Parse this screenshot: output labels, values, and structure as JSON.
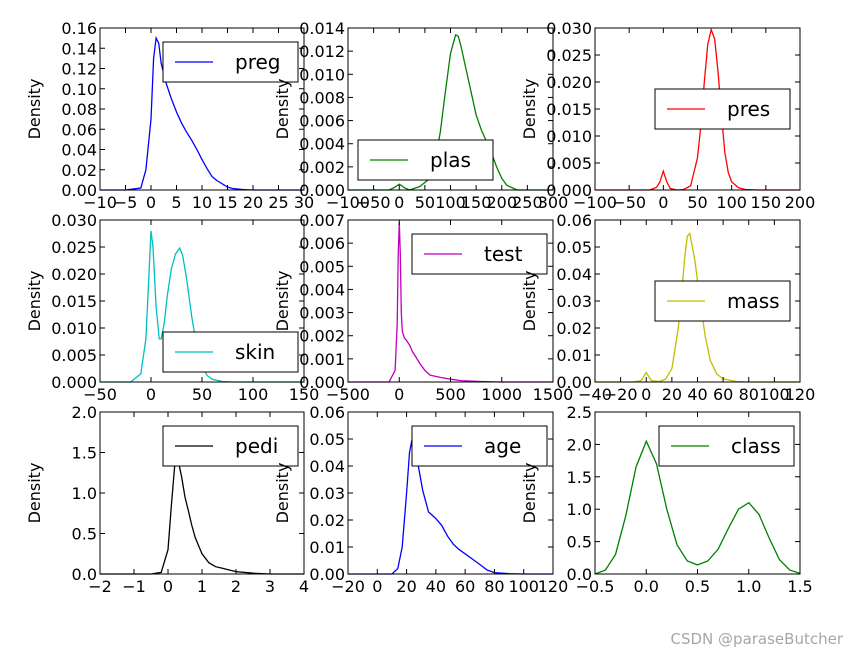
{
  "watermark": "CSDN @paraseButcher",
  "chart_data": [
    {
      "type": "line",
      "series": [
        {
          "name": "preg",
          "color": "#0000ff"
        }
      ],
      "ylabel": "Density",
      "xlim": [
        -10,
        30
      ],
      "ylim": [
        0,
        0.16
      ],
      "xticks": [
        -10,
        -5,
        0,
        5,
        10,
        15,
        20,
        25,
        30
      ],
      "xtick_labels": [
        "−10",
        "−5",
        "0",
        "5",
        "10",
        "15",
        "20",
        "25",
        "30"
      ],
      "yticks": [
        0,
        0.02,
        0.04,
        0.06,
        0.08,
        0.1,
        0.12,
        0.14,
        0.16
      ],
      "ytick_labels": [
        "0.00",
        "0.02",
        "0.04",
        "0.06",
        "0.08",
        "0.10",
        "0.12",
        "0.14",
        "0.16"
      ],
      "legend": "top-right",
      "x": [
        -10,
        -5,
        -2,
        -1,
        0,
        0.5,
        1,
        1.5,
        2,
        3,
        4,
        5,
        6,
        7,
        8,
        9,
        10,
        11,
        12,
        13,
        14,
        15,
        16,
        17,
        18,
        20,
        25,
        30
      ],
      "y": [
        0,
        0,
        0.002,
        0.02,
        0.07,
        0.13,
        0.15,
        0.145,
        0.125,
        0.105,
        0.09,
        0.077,
        0.066,
        0.057,
        0.049,
        0.04,
        0.03,
        0.021,
        0.013,
        0.009,
        0.006,
        0.003,
        0.0015,
        0.001,
        0.0005,
        0,
        0,
        0
      ]
    },
    {
      "type": "line",
      "series": [
        {
          "name": "plas",
          "color": "#008000"
        }
      ],
      "ylabel": "Density",
      "xlim": [
        -100,
        300
      ],
      "ylim": [
        0,
        0.014
      ],
      "xticks": [
        -100,
        -50,
        0,
        50,
        100,
        150,
        200,
        250,
        300
      ],
      "xtick_labels": [
        "−100",
        "−50",
        "0",
        "50",
        "100",
        "150",
        "200",
        "250",
        "300"
      ],
      "yticks": [
        0,
        0.002,
        0.004,
        0.006,
        0.008,
        0.01,
        0.012,
        0.014
      ],
      "ytick_labels": [
        "0.000",
        "0.002",
        "0.004",
        "0.006",
        "0.008",
        "0.010",
        "0.012",
        "0.014"
      ],
      "legend": "bottom-left",
      "x": [
        -100,
        -20,
        -10,
        0,
        10,
        20,
        40,
        60,
        70,
        80,
        90,
        100,
        110,
        115,
        120,
        130,
        140,
        150,
        160,
        170,
        180,
        190,
        200,
        210,
        230,
        260,
        300
      ],
      "y": [
        0,
        0,
        0.0002,
        0.0005,
        0.0002,
        0,
        0.0003,
        0.001,
        0.0025,
        0.005,
        0.0085,
        0.0118,
        0.0134,
        0.0133,
        0.0125,
        0.0105,
        0.0085,
        0.0065,
        0.0052,
        0.0042,
        0.0032,
        0.002,
        0.001,
        0.0004,
        0,
        0,
        0
      ]
    },
    {
      "type": "line",
      "series": [
        {
          "name": "pres",
          "color": "#ff0000"
        }
      ],
      "ylabel": "Density",
      "xlim": [
        -100,
        200
      ],
      "ylim": [
        0,
        0.03
      ],
      "xticks": [
        -100,
        -50,
        0,
        50,
        100,
        150,
        200
      ],
      "xtick_labels": [
        "−100",
        "−50",
        "0",
        "50",
        "100",
        "150",
        "200"
      ],
      "yticks": [
        0,
        0.005,
        0.01,
        0.015,
        0.02,
        0.025,
        0.03
      ],
      "ytick_labels": [
        "0.000",
        "0.005",
        "0.010",
        "0.015",
        "0.020",
        "0.025",
        "0.030"
      ],
      "legend": "center-right",
      "x": [
        -100,
        -40,
        -20,
        -10,
        -5,
        0,
        5,
        10,
        20,
        30,
        40,
        50,
        55,
        60,
        65,
        70,
        75,
        80,
        85,
        90,
        95,
        100,
        110,
        120,
        140,
        170,
        200
      ],
      "y": [
        0,
        0,
        0,
        0.0005,
        0.0015,
        0.0035,
        0.0015,
        0.0003,
        0,
        0.0001,
        0.0008,
        0.006,
        0.012,
        0.02,
        0.027,
        0.0297,
        0.028,
        0.022,
        0.014,
        0.007,
        0.0032,
        0.0015,
        0.0004,
        0.0001,
        0,
        0,
        0
      ]
    },
    {
      "type": "line",
      "series": [
        {
          "name": "skin",
          "color": "#00bfbf"
        }
      ],
      "ylabel": "Density",
      "xlim": [
        -50,
        150
      ],
      "ylim": [
        0,
        0.03
      ],
      "xticks": [
        -50,
        0,
        50,
        100,
        150
      ],
      "xtick_labels": [
        "−50",
        "0",
        "50",
        "100",
        "150"
      ],
      "yticks": [
        0,
        0.005,
        0.01,
        0.015,
        0.02,
        0.025,
        0.03
      ],
      "ytick_labels": [
        "0.000",
        "0.005",
        "0.010",
        "0.015",
        "0.020",
        "0.025",
        "0.030"
      ],
      "legend": "bottom-right",
      "x": [
        -50,
        -20,
        -10,
        -5,
        -2,
        0,
        2,
        5,
        8,
        10,
        13,
        16,
        20,
        24,
        28,
        31,
        35,
        40,
        45,
        50,
        55,
        60,
        70,
        80,
        100,
        150
      ],
      "y": [
        0,
        0,
        0.0015,
        0.008,
        0.02,
        0.028,
        0.025,
        0.014,
        0.008,
        0.008,
        0.011,
        0.016,
        0.021,
        0.0237,
        0.0248,
        0.0235,
        0.019,
        0.012,
        0.0065,
        0.003,
        0.0012,
        0.0005,
        0.0001,
        0,
        0,
        0
      ]
    },
    {
      "type": "line",
      "series": [
        {
          "name": "test",
          "color": "#bf00bf"
        }
      ],
      "ylabel": "Density",
      "xlim": [
        -500,
        1500
      ],
      "ylim": [
        0,
        0.007
      ],
      "xticks": [
        -500,
        0,
        500,
        1000,
        1500
      ],
      "xtick_labels": [
        "−500",
        "0",
        "500",
        "1000",
        "1500"
      ],
      "yticks": [
        0,
        0.001,
        0.002,
        0.003,
        0.004,
        0.005,
        0.006,
        0.007
      ],
      "ytick_labels": [
        "0.000",
        "0.001",
        "0.002",
        "0.003",
        "0.004",
        "0.005",
        "0.006",
        "0.007"
      ],
      "legend": "top-right",
      "x": [
        -500,
        -100,
        -40,
        -20,
        -10,
        0,
        10,
        20,
        30,
        50,
        70,
        100,
        130,
        160,
        200,
        250,
        300,
        400,
        500,
        600,
        800,
        1000,
        1500
      ],
      "y": [
        0,
        0,
        0.0005,
        0.0025,
        0.0055,
        0.0069,
        0.0055,
        0.003,
        0.0022,
        0.0019,
        0.0018,
        0.0016,
        0.0013,
        0.0011,
        0.0008,
        0.0005,
        0.0003,
        0.0002,
        0.00012,
        6e-05,
        2e-05,
        0,
        0
      ]
    },
    {
      "type": "line",
      "series": [
        {
          "name": "mass",
          "color": "#bfbf00"
        }
      ],
      "ylabel": "Density",
      "xlim": [
        -40,
        120
      ],
      "ylim": [
        0,
        0.06
      ],
      "xticks": [
        -40,
        -20,
        0,
        20,
        40,
        60,
        80,
        100,
        120
      ],
      "xtick_labels": [
        "−40",
        "−20",
        "0",
        "20",
        "40",
        "60",
        "80",
        "100",
        "120"
      ],
      "yticks": [
        0,
        0.01,
        0.02,
        0.03,
        0.04,
        0.05,
        0.06
      ],
      "ytick_labels": [
        "0.00",
        "0.01",
        "0.02",
        "0.03",
        "0.04",
        "0.05",
        "0.06"
      ],
      "legend": "center-right",
      "x": [
        -40,
        -10,
        -4,
        -2,
        0,
        2,
        4,
        10,
        15,
        20,
        25,
        28,
        30,
        32,
        34,
        38,
        42,
        46,
        50,
        55,
        60,
        70,
        80,
        120
      ],
      "y": [
        0,
        0,
        0.0005,
        0.002,
        0.0035,
        0.002,
        0.0005,
        0.0002,
        0.001,
        0.005,
        0.02,
        0.035,
        0.046,
        0.054,
        0.055,
        0.045,
        0.03,
        0.017,
        0.008,
        0.003,
        0.0012,
        0.0002,
        0,
        0
      ]
    },
    {
      "type": "line",
      "series": [
        {
          "name": "pedi",
          "color": "#000000"
        }
      ],
      "ylabel": "Density",
      "xlim": [
        -2,
        4
      ],
      "ylim": [
        0,
        2.0
      ],
      "xticks": [
        -2,
        -1,
        0,
        1,
        2,
        3,
        4
      ],
      "xtick_labels": [
        "−2",
        "−1",
        "0",
        "1",
        "2",
        "3",
        "4"
      ],
      "yticks": [
        0,
        0.5,
        1.0,
        1.5,
        2.0
      ],
      "ytick_labels": [
        "0.0",
        "0.5",
        "1.0",
        "1.5",
        "2.0"
      ],
      "legend": "top-right",
      "x": [
        -2,
        -0.5,
        -0.2,
        0,
        0.1,
        0.2,
        0.25,
        0.3,
        0.4,
        0.5,
        0.6,
        0.7,
        0.8,
        1.0,
        1.2,
        1.4,
        1.6,
        1.8,
        2.0,
        2.5,
        3,
        4
      ],
      "y": [
        0,
        0,
        0.02,
        0.3,
        0.85,
        1.35,
        1.45,
        1.4,
        1.2,
        0.95,
        0.78,
        0.6,
        0.45,
        0.25,
        0.14,
        0.09,
        0.07,
        0.05,
        0.03,
        0.01,
        0,
        0
      ]
    },
    {
      "type": "line",
      "series": [
        {
          "name": "age",
          "color": "#0000ff"
        }
      ],
      "ylabel": "Density",
      "xlim": [
        -20,
        120
      ],
      "ylim": [
        0,
        0.06
      ],
      "xticks": [
        -20,
        0,
        20,
        40,
        60,
        80,
        100,
        120
      ],
      "xtick_labels": [
        "−20",
        "0",
        "20",
        "40",
        "60",
        "80",
        "100",
        "120"
      ],
      "yticks": [
        0,
        0.01,
        0.02,
        0.03,
        0.04,
        0.05,
        0.06
      ],
      "ytick_labels": [
        "0.00",
        "0.01",
        "0.02",
        "0.03",
        "0.04",
        "0.05",
        "0.06"
      ],
      "legend": "top-right",
      "x": [
        -20,
        10,
        14,
        17,
        20,
        22,
        24,
        26,
        28,
        31,
        35,
        40,
        44,
        48,
        52,
        56,
        60,
        65,
        70,
        75,
        80,
        90,
        100,
        120
      ],
      "y": [
        0,
        0,
        0.002,
        0.01,
        0.03,
        0.045,
        0.0505,
        0.048,
        0.04,
        0.031,
        0.023,
        0.0205,
        0.018,
        0.014,
        0.011,
        0.009,
        0.0075,
        0.0055,
        0.0035,
        0.0015,
        0.0005,
        0.0001,
        0,
        0
      ]
    },
    {
      "type": "line",
      "series": [
        {
          "name": "class",
          "color": "#008000"
        }
      ],
      "ylabel": "Density",
      "xlim": [
        -0.5,
        1.5
      ],
      "ylim": [
        0,
        2.5
      ],
      "xticks": [
        -0.5,
        0,
        0.5,
        1.0,
        1.5
      ],
      "xtick_labels": [
        "−0.5",
        "0.0",
        "0.5",
        "1.0",
        "1.5"
      ],
      "yticks": [
        0,
        0.5,
        1.0,
        1.5,
        2.0,
        2.5
      ],
      "ytick_labels": [
        "0.0",
        "0.5",
        "1.0",
        "1.5",
        "2.0",
        "2.5"
      ],
      "legend": "top-right",
      "x": [
        -0.5,
        -0.4,
        -0.3,
        -0.2,
        -0.1,
        0,
        0.1,
        0.2,
        0.3,
        0.4,
        0.5,
        0.6,
        0.7,
        0.8,
        0.9,
        1.0,
        1.1,
        1.2,
        1.3,
        1.4,
        1.5
      ],
      "y": [
        0.0,
        0.06,
        0.3,
        0.9,
        1.65,
        2.05,
        1.7,
        1.0,
        0.45,
        0.2,
        0.14,
        0.2,
        0.38,
        0.7,
        1.0,
        1.1,
        0.92,
        0.55,
        0.22,
        0.06,
        0.01
      ]
    }
  ]
}
